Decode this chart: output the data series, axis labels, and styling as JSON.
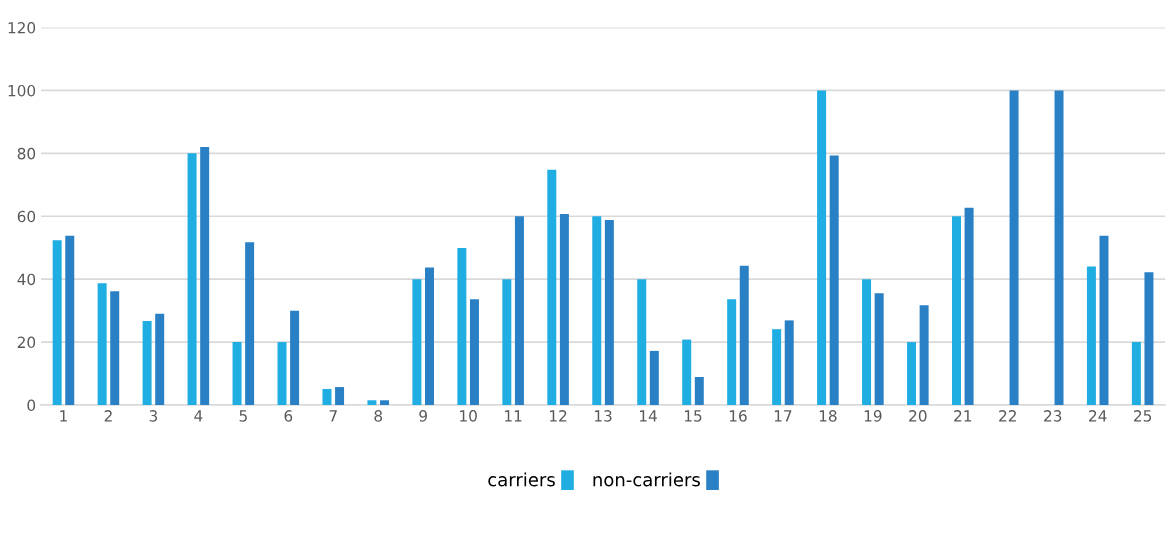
{
  "chart_data": {
    "type": "bar",
    "categories": [
      "1",
      "2",
      "3",
      "4",
      "5",
      "6",
      "7",
      "8",
      "9",
      "10",
      "11",
      "12",
      "13",
      "14",
      "15",
      "16",
      "17",
      "18",
      "19",
      "20",
      "21",
      "22",
      "23",
      "24",
      "25"
    ],
    "series": [
      {
        "name": "carriers",
        "color": "#1fade2",
        "values": [
          52.4,
          38.7,
          26.7,
          80,
          20,
          20,
          5.1,
          1.5,
          40,
          49.9,
          40,
          74.8,
          60,
          40,
          20.8,
          33.6,
          24.1,
          100,
          40,
          20,
          60,
          0,
          0,
          44,
          20
        ]
      },
      {
        "name": "non-carriers",
        "color": "#2980c4",
        "values": [
          53.8,
          36.2,
          29,
          82,
          51.7,
          30,
          5.7,
          1.5,
          43.7,
          33.6,
          60,
          60.7,
          58.8,
          17.2,
          8.9,
          44.3,
          26.9,
          79.3,
          35.5,
          31.7,
          62.7,
          100,
          100,
          53.8,
          42.2
        ]
      }
    ],
    "ylim": [
      0,
      120
    ],
    "yticks": [
      0,
      20,
      40,
      60,
      80,
      100,
      120
    ],
    "grid": "y",
    "legend": "bottom"
  }
}
